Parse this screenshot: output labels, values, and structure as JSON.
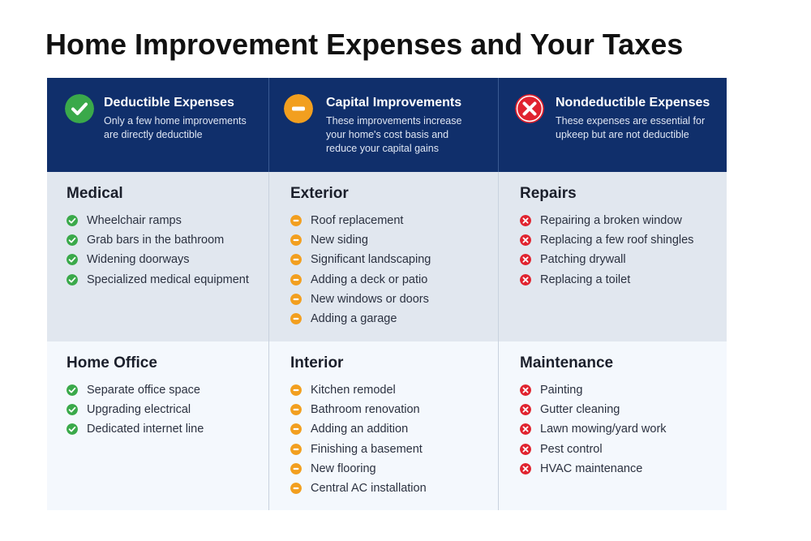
{
  "title": "Home Improvement Expenses and Your Taxes",
  "colors": {
    "header_bg": "#102f6b",
    "check_green": "#3aa94a",
    "minus_orange": "#f29f1f",
    "x_red": "#e0232f",
    "row1_bg": "#e1e7ef",
    "row2_bg": "#f4f8fd"
  },
  "columns": [
    {
      "icon": "check-icon",
      "title": "Deductible Expenses",
      "desc_lines": [
        "Only a few home improvements",
        "are directly deductible"
      ]
    },
    {
      "icon": "minus-icon",
      "title": "Capital Improvements",
      "desc_lines": [
        "These improvements increase",
        "your home's cost basis and",
        "reduce your capital gains"
      ]
    },
    {
      "icon": "x-icon",
      "title": "Nondeductible Expenses",
      "desc_lines": [
        "These expenses are essential for",
        "upkeep but are not deductible"
      ]
    }
  ],
  "rows": [
    [
      {
        "title": "Medical",
        "items": [
          "Wheelchair ramps",
          "Grab bars in the bathroom",
          "Widening doorways",
          "Specialized medical equipment"
        ]
      },
      {
        "title": "Exterior",
        "items": [
          "Roof replacement",
          "New siding",
          "Significant landscaping",
          "Adding a deck or patio",
          "New windows or doors",
          "Adding a garage"
        ]
      },
      {
        "title": "Repairs",
        "items": [
          "Repairing a broken window",
          "Replacing a few roof shingles",
          "Patching drywall",
          "Replacing a toilet"
        ]
      }
    ],
    [
      {
        "title": "Home Office",
        "items": [
          "Separate office space",
          "Upgrading electrical",
          "Dedicated internet line"
        ]
      },
      {
        "title": "Interior",
        "items": [
          "Kitchen remodel",
          "Bathroom renovation",
          "Adding an addition",
          "Finishing a basement",
          "New flooring",
          "Central AC installation"
        ]
      },
      {
        "title": "Maintenance",
        "items": [
          "Painting",
          "Gutter cleaning",
          "Lawn mowing/yard work",
          "Pest control",
          "HVAC maintenance"
        ]
      }
    ]
  ]
}
